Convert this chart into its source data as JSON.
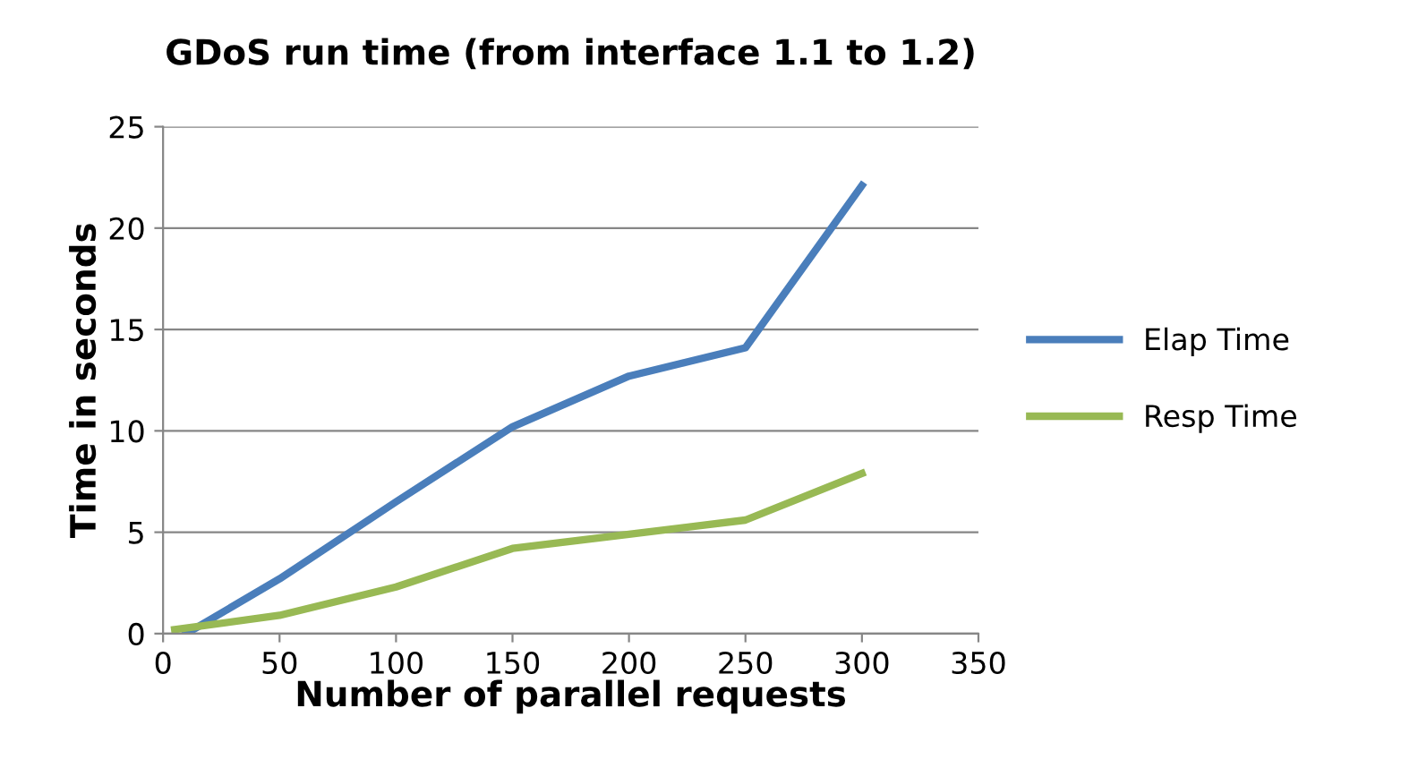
{
  "chart_data": {
    "type": "line",
    "title": "GDoS run time (from interface 1.1 to 1.2)",
    "xlabel": "Number of parallel requests",
    "ylabel": "Time in seconds",
    "series": [
      {
        "name": "Elap Time",
        "color": "#4a7ebb",
        "x": [
          10,
          50,
          100,
          150,
          200,
          250,
          300
        ],
        "values": [
          0,
          2.7,
          6.5,
          10.2,
          12.7,
          14.1,
          22.1
        ]
      },
      {
        "name": "Resp Time",
        "color": "#98b954",
        "x": [
          5,
          50,
          100,
          150,
          200,
          250,
          300
        ],
        "values": [
          0.2,
          0.9,
          2.3,
          4.2,
          4.9,
          5.6,
          7.9
        ]
      }
    ],
    "xlim": [
      0,
      350
    ],
    "xticks": [
      0,
      50,
      100,
      150,
      200,
      250,
      300,
      350
    ],
    "ylim": [
      0,
      25
    ],
    "yticks": [
      0,
      5,
      10,
      15,
      20,
      25
    ],
    "grid": "y",
    "legend": "right",
    "marker": "none",
    "line_style": "solid"
  }
}
